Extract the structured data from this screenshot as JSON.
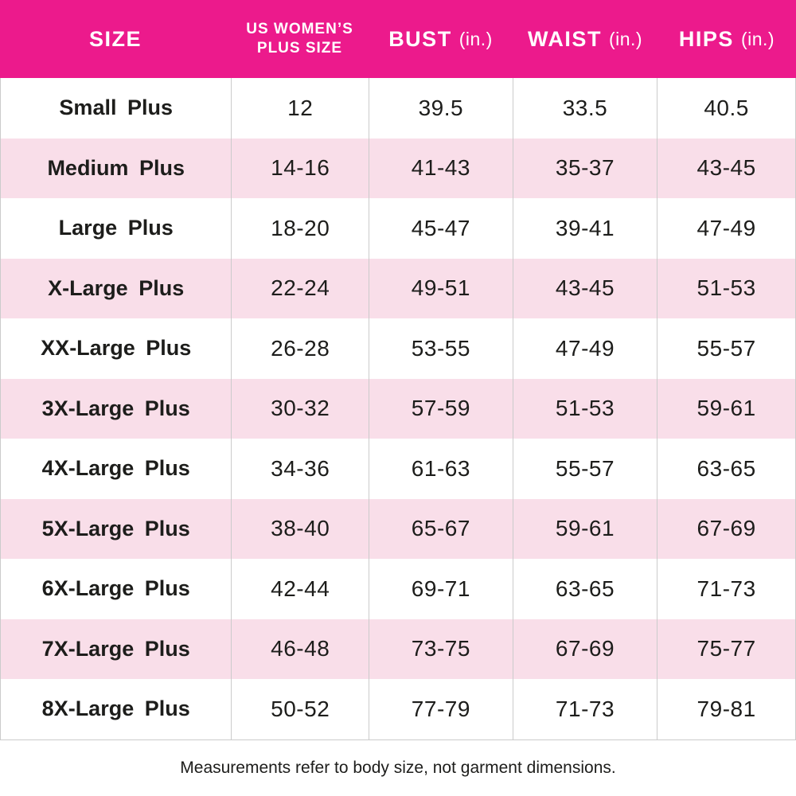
{
  "colors": {
    "header_bg": "#EC1A8C",
    "header_text": "#FFFFFF",
    "row_bg": "#FFFFFF",
    "row_alt_bg": "#F9DEE9",
    "divider": "#CBCBCB",
    "text": "#1D1D1B"
  },
  "chart_data": {
    "type": "table",
    "columns": [
      "SIZE",
      "US WOMEN’S PLUS SIZE",
      "BUST (in.)",
      "WAIST (in.)",
      "HIPS (in.)"
    ],
    "header": {
      "size": "SIZE",
      "plus_size_line1": "US WOMEN’S",
      "plus_size_line2": "PLUS SIZE",
      "bust": "BUST",
      "waist": "WAIST",
      "hips": "HIPS",
      "unit": "(in.)"
    },
    "rows": [
      [
        "Small Plus",
        "12",
        "39.5",
        "33.5",
        "40.5"
      ],
      [
        "Medium Plus",
        "14-16",
        "41-43",
        "35-37",
        "43-45"
      ],
      [
        "Large Plus",
        "18-20",
        "45-47",
        "39-41",
        "47-49"
      ],
      [
        "X-Large Plus",
        "22-24",
        "49-51",
        "43-45",
        "51-53"
      ],
      [
        "XX-Large Plus",
        "26-28",
        "53-55",
        "47-49",
        "55-57"
      ],
      [
        "3X-Large Plus",
        "30-32",
        "57-59",
        "51-53",
        "59-61"
      ],
      [
        "4X-Large Plus",
        "34-36",
        "61-63",
        "55-57",
        "63-65"
      ],
      [
        "5X-Large Plus",
        "38-40",
        "65-67",
        "59-61",
        "67-69"
      ],
      [
        "6X-Large Plus",
        "42-44",
        "69-71",
        "63-65",
        "71-73"
      ],
      [
        "7X-Large Plus",
        "46-48",
        "73-75",
        "67-69",
        "75-77"
      ],
      [
        "8X-Large Plus",
        "50-52",
        "77-79",
        "71-73",
        "79-81"
      ]
    ],
    "layout": {
      "row_striping": "alternating white and light pink",
      "grid": "vertical column dividers only",
      "legend": "none"
    },
    "note": "Measurements refer to body size, not garment dimensions."
  }
}
